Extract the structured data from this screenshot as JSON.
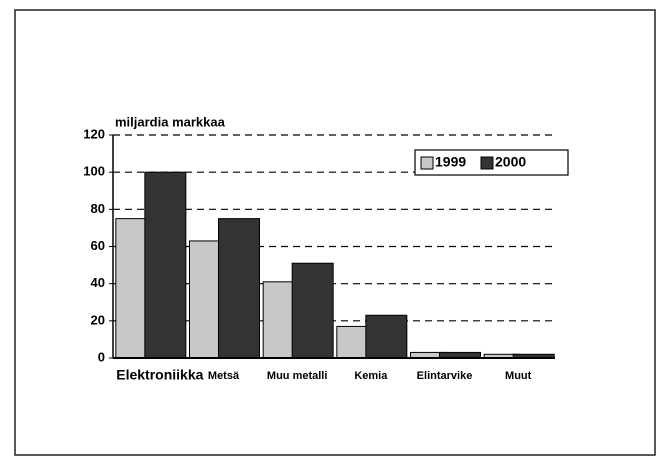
{
  "chart_data": {
    "type": "bar",
    "y_axis_label": "miljardia markkaa",
    "categories": [
      "Elektroniikka",
      "Metsä",
      "Muu metalli",
      "Kemia",
      "Elintarvike",
      "Muut"
    ],
    "series": [
      {
        "name": "1999",
        "color": "#c8c8c8",
        "values": [
          75,
          63,
          41,
          17,
          3,
          2
        ]
      },
      {
        "name": "2000",
        "color": "#333333",
        "values": [
          100,
          75,
          51,
          23,
          3,
          2
        ]
      }
    ],
    "ylim": [
      0,
      120
    ],
    "yticks": [
      0,
      20,
      40,
      60,
      80,
      100,
      120
    ],
    "grid": true,
    "legend": "top-right"
  }
}
